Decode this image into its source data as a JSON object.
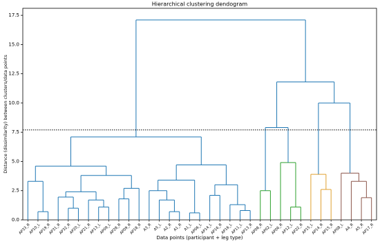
{
  "chart_data": {
    "type": "dendrogram",
    "title": "Hierarchical clustering dendogram",
    "x_label": "Data points (participant + leg type)",
    "y_label": "Distance (dissimilarity) between clusters/data points",
    "ylim": [
      0,
      18.1
    ],
    "yticks": [
      {
        "value": 0,
        "label": "0.0"
      },
      2.5,
      {
        "value": 5,
        "label": "5.0"
      },
      7.5,
      {
        "value": 10,
        "label": "10.0"
      },
      12.5,
      {
        "value": 15,
        "label": "15.0"
      },
      17.5
    ],
    "threshold": 7.7,
    "tree": {
      "height": 17.1,
      "color": "#1f77b4",
      "children": [
        {
          "height": 7.1,
          "children": [
            {
              "height": 4.6,
              "children": [
                {
                  "height": 3.3,
                  "children": [
                    "AP33_R",
                    {
                      "height": 0.7,
                      "children": [
                        "AP10_L",
                        "AP19_R"
                      ]
                    }
                  ]
                },
                {
                  "height": 3.8,
                  "children": [
                    {
                      "height": 2.4,
                      "children": [
                        {
                          "height": 1.95,
                          "children": [
                            "AP31_R",
                            {
                              "height": 1.0,
                              "children": [
                                "AP32_R",
                                "AP20_L"
                              ]
                            }
                          ]
                        },
                        {
                          "height": 1.7,
                          "children": [
                            "AP21_R",
                            {
                              "height": 1.1,
                              "children": [
                                "AP13_L",
                                "AP09_L"
                              ]
                            }
                          ]
                        }
                      ]
                    },
                    {
                      "height": 2.7,
                      "children": [
                        {
                          "height": 1.8,
                          "children": [
                            "AP28_R",
                            "AP09_R"
                          ]
                        },
                        "AP18_R"
                      ]
                    }
                  ]
                }
              ]
            },
            {
              "height": 4.7,
              "children": [
                {
                  "height": 3.4,
                  "children": [
                    {
                      "height": 2.5,
                      "children": [
                        "A3_R",
                        {
                          "height": 1.7,
                          "children": [
                            "A5_L",
                            {
                              "height": 0.7,
                              "children": [
                                "A2_R",
                                "A1_R"
                              ]
                            }
                          ]
                        }
                      ]
                    },
                    {
                      "height": 0.6,
                      "children": [
                        "A1_L",
                        "AP06_L"
                      ]
                    }
                  ]
                },
                {
                  "height": 3.0,
                  "children": [
                    {
                      "height": 2.1,
                      "children": [
                        "AP14_L",
                        "AP16_R"
                      ]
                    },
                    {
                      "height": 1.3,
                      "children": [
                        "AP16_L",
                        {
                          "height": 0.8,
                          "children": [
                            "AP11_L",
                            "AP13_R"
                          ]
                        }
                      ]
                    }
                  ]
                }
              ]
            }
          ]
        },
        {
          "height": 11.8,
          "children": [
            {
              "height": 7.9,
              "children": [
                {
                  "height": 2.5,
                  "color": "#2ca02c",
                  "children": [
                    "AP08_R",
                    "AP02_L"
                  ]
                },
                {
                  "height": 4.9,
                  "color": "#2ca02c",
                  "children": [
                    "AP06_R",
                    {
                      "height": 1.1,
                      "children": [
                        "AP12_L",
                        "AP22_R"
                      ]
                    }
                  ]
                }
              ]
            },
            {
              "height": 10.0,
              "children": [
                {
                  "height": 3.9,
                  "color": "#e0a030",
                  "children": [
                    "AP15_L",
                    {
                      "height": 2.6,
                      "children": [
                        "AP14_R",
                        "AP15_R"
                      ]
                    }
                  ]
                },
                {
                  "height": 4.0,
                  "color": "#8c564b",
                  "children": [
                    "AP08_L",
                    {
                      "height": 3.3,
                      "children": [
                        "A4_R",
                        {
                          "height": 1.9,
                          "children": [
                            "A5_R",
                            "AP17_R"
                          ]
                        }
                      ]
                    }
                  ]
                }
              ]
            }
          ]
        }
      ]
    }
  }
}
